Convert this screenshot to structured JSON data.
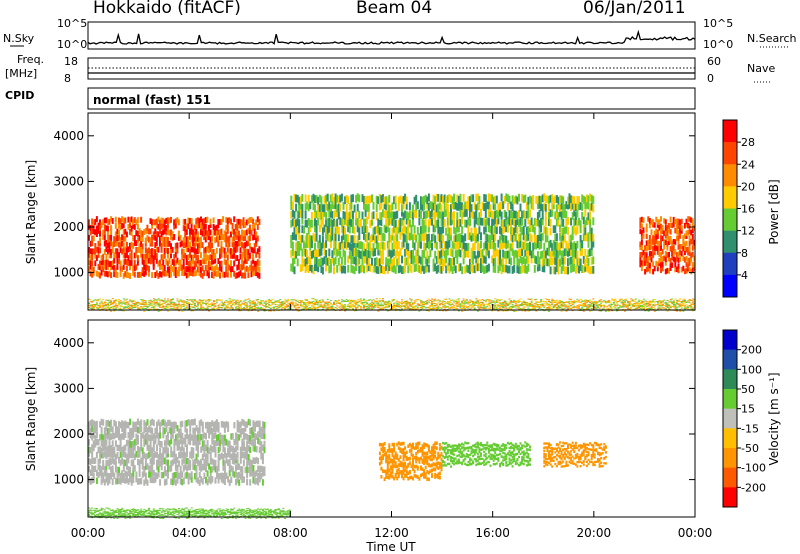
{
  "header": {
    "station": "Hokkaido (fitACF)",
    "beam": "Beam 04",
    "date": "06/Jan/2011"
  },
  "strip": {
    "nsky_label": "N.Sky",
    "nsky_ticks": [
      "10^5",
      "10^0"
    ],
    "nsearch_ticks": [
      "10^5",
      "10^0"
    ],
    "nsearch_label": "N.Search",
    "freq_label": "Freq.",
    "freq_unit": "[MHz]",
    "freq_ticks": [
      "18",
      "8"
    ],
    "nave_ticks": [
      "60",
      "0"
    ],
    "nave_label": "Nave",
    "cpid_label": "CPID",
    "mode_text": "normal (fast) 151"
  },
  "colors": {
    "power_scale": [
      "#0000ff",
      "#1f3fbf",
      "#2f8f6f",
      "#66cc33",
      "#ffcc00",
      "#ff8c00",
      "#ff4500",
      "#ff0000"
    ],
    "velocity_scale": [
      "#ff0000",
      "#ff5a00",
      "#ff9500",
      "#ffbf00",
      "#c0c0bb",
      "#66cc33",
      "#2e8b57",
      "#1f4fa8",
      "#0000cc"
    ],
    "ground_scatter": "#b4b4b0"
  },
  "chart_data": [
    {
      "type": "heatmap",
      "panel": "power",
      "xlabel": "",
      "ylabel": "Slant Range [km]",
      "xticks": [
        "00:00",
        "04:00",
        "08:00",
        "12:00",
        "16:00",
        "20:00",
        "00:00"
      ],
      "xlim_hours_ut": [
        0,
        24
      ],
      "yticks": [
        "1000",
        "2000",
        "3000",
        "4000"
      ],
      "ylim_km": [
        180,
        4500
      ],
      "colorbar_title": "Power [dB]",
      "colorbar_ticks": [
        "4",
        "8",
        "12",
        "16",
        "20",
        "24",
        "28"
      ],
      "features": [
        {
          "name": "strong echo band",
          "hours_ut": [
            0,
            6.8
          ],
          "range_km": [
            900,
            2200
          ],
          "power_db": 28
        },
        {
          "name": "diagonal band",
          "hours_ut": [
            8,
            20
          ],
          "range_km": [
            1000,
            2700
          ],
          "power_db": 14
        },
        {
          "name": "late strong echoes",
          "hours_ut": [
            21.8,
            24
          ],
          "range_km": [
            1000,
            2200
          ],
          "power_db": 26
        },
        {
          "name": "near-range echoes",
          "hours_ut": [
            0,
            24
          ],
          "range_km": [
            180,
            400
          ],
          "power_db": 20
        }
      ]
    },
    {
      "type": "heatmap",
      "panel": "velocity",
      "xlabel": "Time UT",
      "ylabel": "Slant Range [km]",
      "xticks": [
        "00:00",
        "04:00",
        "08:00",
        "12:00",
        "16:00",
        "20:00",
        "00:00"
      ],
      "xlim_hours_ut": [
        0,
        24
      ],
      "yticks": [
        "1000",
        "2000",
        "3000",
        "4000"
      ],
      "ylim_km": [
        180,
        4500
      ],
      "colorbar_title": "Velocity [m s⁻¹]",
      "colorbar_ticks": [
        "200",
        "100",
        "50",
        "15",
        "-15",
        "-50",
        "-100",
        "-200"
      ],
      "features": [
        {
          "name": "ground scatter band",
          "hours_ut": [
            0,
            7
          ],
          "range_km": [
            900,
            2300
          ],
          "velocity_ms": 0
        },
        {
          "name": "negative velocity region",
          "hours_ut": [
            11.5,
            14
          ],
          "range_km": [
            1000,
            1800
          ],
          "velocity_ms": -60
        },
        {
          "name": "positive velocity region",
          "hours_ut": [
            14,
            17.5
          ],
          "range_km": [
            1300,
            1800
          ],
          "velocity_ms": 30
        },
        {
          "name": "late negative region",
          "hours_ut": [
            18,
            20.5
          ],
          "range_km": [
            1300,
            1800
          ],
          "velocity_ms": -60
        },
        {
          "name": "near-range positive",
          "hours_ut": [
            0,
            8
          ],
          "range_km": [
            180,
            350
          ],
          "velocity_ms": 40
        }
      ]
    }
  ]
}
